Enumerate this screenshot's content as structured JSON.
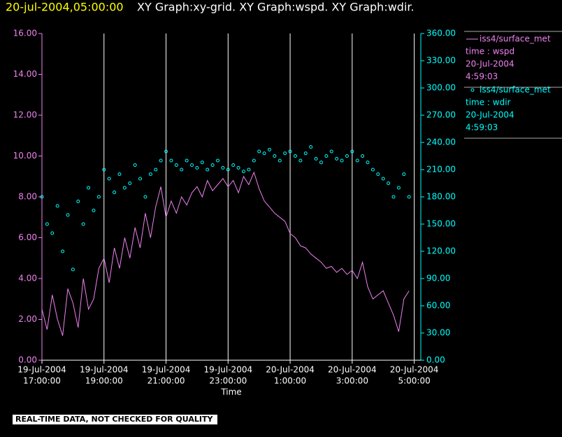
{
  "chart_data": {
    "type": "xy",
    "header": {
      "timestamp": "20-jul-2004,05:00:00",
      "graphs": "XY Graph:xy-grid.  XY Graph:wspd.  XY Graph:wdir."
    },
    "xlabel": "Time",
    "note": "REAL-TIME DATA, NOT CHECKED FOR QUALITY",
    "grid": true,
    "xlim": [
      "2004-07-19T17:00",
      "2004-07-20T05:10"
    ],
    "xticks": [
      {
        "value": "2004-07-19T17:00",
        "label": [
          "19-Jul-2004",
          "17:00:00"
        ]
      },
      {
        "value": "2004-07-19T19:00",
        "label": [
          "19-Jul-2004",
          "19:00:00"
        ]
      },
      {
        "value": "2004-07-19T21:00",
        "label": [
          "19-Jul-2004",
          "21:00:00"
        ]
      },
      {
        "value": "2004-07-19T23:00",
        "label": [
          "19-Jul-2004",
          "23:00:00"
        ]
      },
      {
        "value": "2004-07-20T01:00",
        "label": [
          "20-Jul-2004",
          "1:00:00"
        ]
      },
      {
        "value": "2004-07-20T03:00",
        "label": [
          "20-Jul-2004",
          "3:00:00"
        ]
      },
      {
        "value": "2004-07-20T05:00",
        "label": [
          "20-Jul-2004",
          "5:00:00"
        ]
      }
    ],
    "ylim": [
      0,
      16
    ],
    "yticks": [
      {
        "value": 0,
        "label": "0.00"
      },
      {
        "value": 2,
        "label": "2.00"
      },
      {
        "value": 4,
        "label": "4.00"
      },
      {
        "value": 6,
        "label": "6.00"
      },
      {
        "value": 8,
        "label": "8.00"
      },
      {
        "value": 10,
        "label": "10.00"
      },
      {
        "value": 12,
        "label": "12.00"
      },
      {
        "value": 14,
        "label": "14.00"
      },
      {
        "value": 16,
        "label": "16.00"
      }
    ],
    "y2lim": [
      0,
      360
    ],
    "y2ticks": [
      {
        "value": 0,
        "label": "0.00"
      },
      {
        "value": 30,
        "label": "30.00"
      },
      {
        "value": 60,
        "label": "60.00"
      },
      {
        "value": 90,
        "label": "90.00"
      },
      {
        "value": 120,
        "label": "120.00"
      },
      {
        "value": 150,
        "label": "150.00"
      },
      {
        "value": 180,
        "label": "180.00"
      },
      {
        "value": 210,
        "label": "210.00"
      },
      {
        "value": 240,
        "label": "240.00"
      },
      {
        "value": 270,
        "label": "270.00"
      },
      {
        "value": 300,
        "label": "300.00"
      },
      {
        "value": 330,
        "label": "330.00"
      },
      {
        "value": 360,
        "label": "360.00"
      }
    ],
    "x": [
      "2004-07-19T17:00",
      "2004-07-19T17:10",
      "2004-07-19T17:20",
      "2004-07-19T17:30",
      "2004-07-19T17:40",
      "2004-07-19T17:50",
      "2004-07-19T18:00",
      "2004-07-19T18:10",
      "2004-07-19T18:20",
      "2004-07-19T18:30",
      "2004-07-19T18:40",
      "2004-07-19T18:50",
      "2004-07-19T19:00",
      "2004-07-19T19:10",
      "2004-07-19T19:20",
      "2004-07-19T19:30",
      "2004-07-19T19:40",
      "2004-07-19T19:50",
      "2004-07-19T20:00",
      "2004-07-19T20:10",
      "2004-07-19T20:20",
      "2004-07-19T20:30",
      "2004-07-19T20:40",
      "2004-07-19T20:50",
      "2004-07-19T21:00",
      "2004-07-19T21:10",
      "2004-07-19T21:20",
      "2004-07-19T21:30",
      "2004-07-19T21:40",
      "2004-07-19T21:50",
      "2004-07-19T22:00",
      "2004-07-19T22:10",
      "2004-07-19T22:20",
      "2004-07-19T22:30",
      "2004-07-19T22:40",
      "2004-07-19T22:50",
      "2004-07-19T23:00",
      "2004-07-19T23:10",
      "2004-07-19T23:20",
      "2004-07-19T23:30",
      "2004-07-19T23:40",
      "2004-07-19T23:50",
      "2004-07-20T00:00",
      "2004-07-20T00:10",
      "2004-07-20T00:20",
      "2004-07-20T00:30",
      "2004-07-20T00:40",
      "2004-07-20T00:50",
      "2004-07-20T01:00",
      "2004-07-20T01:10",
      "2004-07-20T01:20",
      "2004-07-20T01:30",
      "2004-07-20T01:40",
      "2004-07-20T01:50",
      "2004-07-20T02:00",
      "2004-07-20T02:10",
      "2004-07-20T02:20",
      "2004-07-20T02:30",
      "2004-07-20T02:40",
      "2004-07-20T02:50",
      "2004-07-20T03:00",
      "2004-07-20T03:10",
      "2004-07-20T03:20",
      "2004-07-20T03:30",
      "2004-07-20T03:40",
      "2004-07-20T03:50",
      "2004-07-20T04:00",
      "2004-07-20T04:10",
      "2004-07-20T04:20",
      "2004-07-20T04:30",
      "2004-07-20T04:40",
      "2004-07-20T04:50"
    ],
    "series": [
      {
        "name": "iss4/surface_met",
        "legend": [
          "time : wspd",
          "20-Jul-2004",
          "4:59:03"
        ],
        "style": "line",
        "color": "#ee82ee",
        "values": [
          2.5,
          1.5,
          3.2,
          2.0,
          1.2,
          3.5,
          2.8,
          1.6,
          4.0,
          2.5,
          3.0,
          4.5,
          5.0,
          3.8,
          5.5,
          4.5,
          6.0,
          5.0,
          6.5,
          5.5,
          7.2,
          6.0,
          7.5,
          8.5,
          7.0,
          7.8,
          7.2,
          8.0,
          7.6,
          8.2,
          8.5,
          8.0,
          8.8,
          8.3,
          8.6,
          8.9,
          8.5,
          8.8,
          8.2,
          9.0,
          8.6,
          9.2,
          8.4,
          7.8,
          7.5,
          7.2,
          7.0,
          6.8,
          6.2,
          6.0,
          5.6,
          5.5,
          5.2,
          5.0,
          4.8,
          4.5,
          4.6,
          4.3,
          4.5,
          4.2,
          4.4,
          4.0,
          4.8,
          3.6,
          3.0,
          3.2,
          3.4,
          2.8,
          2.2,
          1.4,
          3.0,
          3.4
        ]
      },
      {
        "name": "iss4/surface_met",
        "legend": [
          "time : wdir",
          "20-Jul-2004",
          "4:59:03"
        ],
        "style": "scatter",
        "axis": "y2",
        "color": "#00ffff",
        "values": [
          180,
          150,
          140,
          170,
          120,
          160,
          100,
          175,
          150,
          190,
          165,
          180,
          210,
          200,
          185,
          205,
          190,
          195,
          215,
          200,
          180,
          205,
          210,
          220,
          230,
          220,
          215,
          210,
          220,
          215,
          212,
          218,
          210,
          215,
          220,
          212,
          210,
          215,
          212,
          208,
          210,
          220,
          230,
          228,
          232,
          225,
          220,
          228,
          230,
          225,
          220,
          228,
          235,
          222,
          218,
          225,
          230,
          222,
          220,
          225,
          230,
          220,
          225,
          218,
          210,
          205,
          200,
          195,
          180,
          190,
          205,
          180
        ]
      }
    ]
  }
}
